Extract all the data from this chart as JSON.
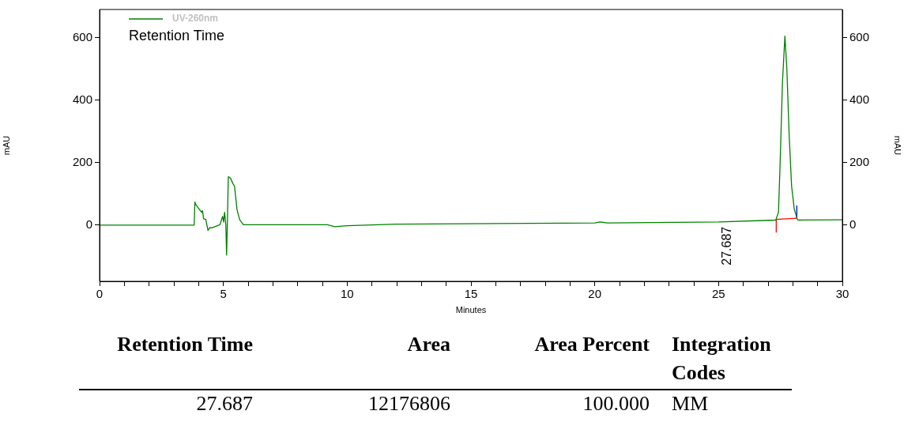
{
  "chart_data": [
    {
      "type": "line",
      "xlabel": "Minutes",
      "ylabel": "mAU",
      "y2label": "mAU",
      "legend": "top left",
      "marker": "none",
      "line_style": "solid",
      "grid": false,
      "xlim": [
        0,
        30
      ],
      "xticks": [
        0,
        {
          "value": 1,
          "label": null
        },
        {
          "value": 2,
          "label": null
        },
        {
          "value": 3,
          "label": null
        },
        {
          "value": 4,
          "label": null
        },
        5,
        {
          "value": 6,
          "label": null
        },
        {
          "value": 7,
          "label": null
        },
        {
          "value": 8,
          "label": null
        },
        {
          "value": 9,
          "label": null
        },
        10,
        {
          "value": 11,
          "label": null
        },
        {
          "value": 12,
          "label": null
        },
        {
          "value": 13,
          "label": null
        },
        {
          "value": 14,
          "label": null
        },
        15,
        {
          "value": 16,
          "label": null
        },
        {
          "value": 17,
          "label": null
        },
        {
          "value": 18,
          "label": null
        },
        {
          "value": 19,
          "label": null
        },
        20,
        {
          "value": 21,
          "label": null
        },
        {
          "value": 22,
          "label": null
        },
        {
          "value": 23,
          "label": null
        },
        {
          "value": 24,
          "label": null
        },
        25,
        {
          "value": 26,
          "label": null
        },
        {
          "value": 27,
          "label": null
        },
        {
          "value": 28,
          "label": null
        },
        {
          "value": 29,
          "label": null
        },
        30
      ],
      "ylim": [
        -180,
        690
      ],
      "yticks": [
        0,
        200,
        400,
        600
      ],
      "y2lim": [
        -180,
        690
      ],
      "y2ticks": [
        0,
        200,
        400,
        600
      ],
      "series": [
        {
          "name": "UV-260nm",
          "color": "#008000",
          "x": [
            0,
            3.82,
            3.85,
            3.88,
            4.12,
            4.16,
            4.2,
            4.29,
            4.38,
            4.45,
            4.53,
            4.86,
            4.97,
            5.01,
            5.05,
            5.1,
            5.13,
            5.16,
            5.2,
            5.29,
            5.39,
            5.45,
            5.55,
            5.66,
            5.81,
            9.2,
            9.5,
            10,
            12,
            16,
            20,
            20.2,
            20.5,
            25,
            27.31,
            27.42,
            27.49,
            27.58,
            27.68,
            27.76,
            27.85,
            27.95,
            28.06,
            28.19,
            28.25,
            30
          ],
          "values": [
            0,
            0,
            74,
            66,
            41,
            46,
            20,
            18,
            -17,
            -8,
            -9,
            1,
            28,
            10,
            41,
            0,
            -96,
            0,
            155,
            150,
            132,
            125,
            50,
            17,
            1,
            1,
            -5,
            -2,
            3,
            5,
            7,
            10,
            7,
            10,
            16,
            41,
            207,
            456,
            605,
            497,
            290,
            124,
            50,
            17,
            16,
            17
          ]
        },
        {
          "color": "#ff0000",
          "x": [
            27.33,
            27.33,
            28.16
          ],
          "values": [
            -24,
            18,
            22
          ]
        },
        {
          "color": "#0000ff",
          "x": [
            28.16,
            28.16
          ],
          "values": [
            22,
            63
          ]
        }
      ],
      "annotations": [
        "Retention Time",
        "27.687"
      ]
    },
    {
      "type": "other",
      "annotations": [
        "Retention Time",
        "Area",
        "Area Percent",
        "Integration Codes",
        "27.687",
        "12176806",
        "100.000",
        "MM"
      ]
    }
  ]
}
